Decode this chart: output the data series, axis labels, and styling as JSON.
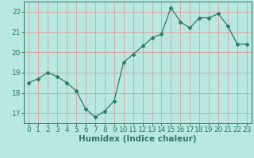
{
  "x": [
    0,
    1,
    2,
    3,
    4,
    5,
    6,
    7,
    8,
    9,
    10,
    11,
    12,
    13,
    14,
    15,
    16,
    17,
    18,
    19,
    20,
    21,
    22,
    23
  ],
  "y": [
    18.5,
    18.7,
    19.0,
    18.8,
    18.5,
    18.1,
    17.2,
    16.8,
    17.1,
    17.6,
    19.5,
    19.9,
    20.3,
    20.7,
    20.9,
    22.2,
    21.5,
    21.2,
    21.7,
    21.7,
    21.9,
    21.3,
    20.4,
    20.4
  ],
  "line_color": "#2d7a6a",
  "marker": "D",
  "marker_size": 2.5,
  "bg_color": "#b8e8e0",
  "grid_color": "#d8a8a8",
  "xlabel": "Humidex (Indice chaleur)",
  "ylim": [
    16.5,
    22.5
  ],
  "xlim": [
    -0.5,
    23.5
  ],
  "yticks": [
    17,
    18,
    19,
    20,
    21,
    22
  ],
  "xticks": [
    0,
    1,
    2,
    3,
    4,
    5,
    6,
    7,
    8,
    9,
    10,
    11,
    12,
    13,
    14,
    15,
    16,
    17,
    18,
    19,
    20,
    21,
    22,
    23
  ],
  "tick_fontsize": 6.5,
  "label_fontsize": 7.5
}
